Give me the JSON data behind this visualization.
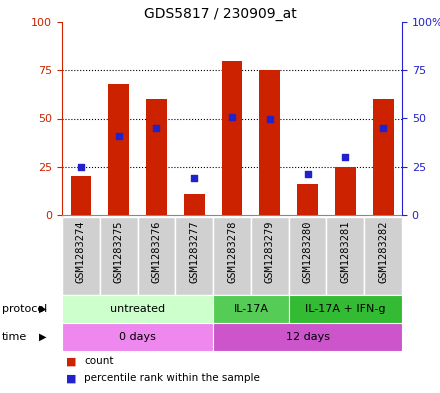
{
  "title": "GDS5817 / 230909_at",
  "samples": [
    "GSM1283274",
    "GSM1283275",
    "GSM1283276",
    "GSM1283277",
    "GSM1283278",
    "GSM1283279",
    "GSM1283280",
    "GSM1283281",
    "GSM1283282"
  ],
  "count_values": [
    20,
    68,
    60,
    11,
    80,
    75,
    16,
    25,
    60
  ],
  "percentile_values": [
    25,
    41,
    45,
    19,
    51,
    50,
    21,
    30,
    45
  ],
  "protocol_groups": [
    {
      "label": "untreated",
      "start": 0,
      "end": 4,
      "color": "#ccffcc"
    },
    {
      "label": "IL-17A",
      "start": 4,
      "end": 6,
      "color": "#55cc55"
    },
    {
      "label": "IL-17A + IFN-g",
      "start": 6,
      "end": 9,
      "color": "#33bb33"
    }
  ],
  "time_groups": [
    {
      "label": "0 days",
      "start": 0,
      "end": 4,
      "color": "#ee88ee"
    },
    {
      "label": "12 days",
      "start": 4,
      "end": 9,
      "color": "#cc55cc"
    }
  ],
  "bar_color": "#cc2200",
  "dot_color": "#2222cc",
  "ylim": [
    0,
    100
  ],
  "yticks": [
    0,
    25,
    50,
    75,
    100
  ],
  "bar_width": 0.55,
  "title_fontsize": 10,
  "axis_color_left": "#cc2200",
  "axis_color_right": "#2222cc",
  "sample_box_color": "#d0d0d0",
  "fig_width": 4.4,
  "fig_height": 3.93,
  "dpi": 100
}
